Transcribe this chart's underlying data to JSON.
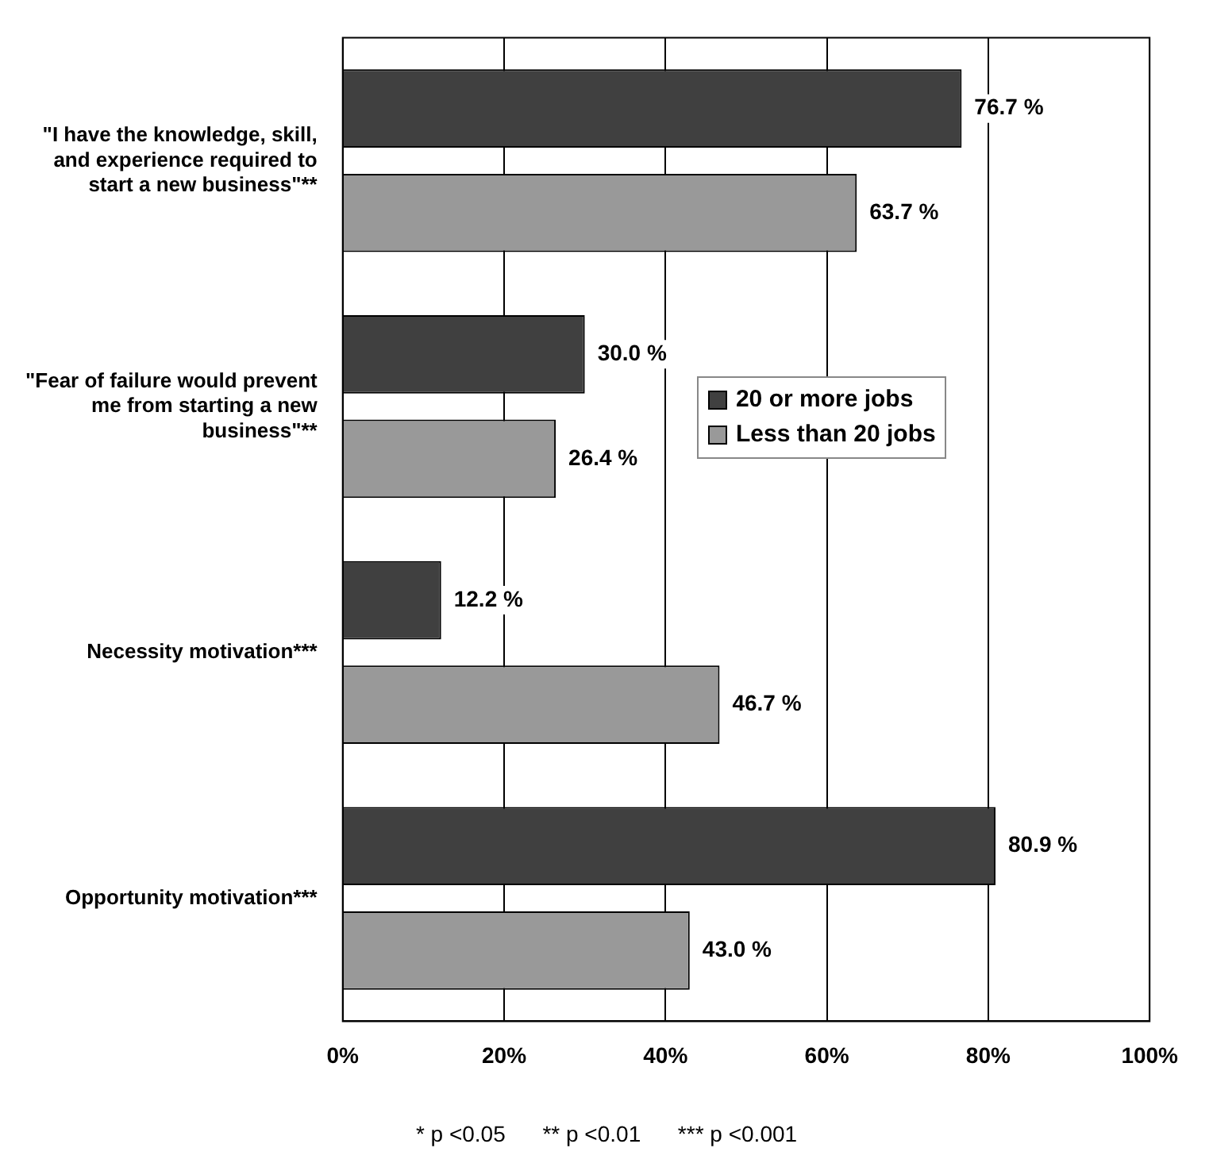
{
  "chart_data": {
    "type": "bar",
    "orientation": "horizontal",
    "categories": [
      "\"I have the knowledge, skill, and experience required to start a new business\"**",
      "\"Fear of failure would prevent me from starting a new business\"**",
      "Necessity motivation***",
      "Opportunity motivation***"
    ],
    "series": [
      {
        "name": "20 or more jobs",
        "color": "#404040",
        "values": [
          76.7,
          30.0,
          12.2,
          80.9
        ],
        "value_labels": [
          "76.7 %",
          "30.0 %",
          "12.2 %",
          "80.9 %"
        ]
      },
      {
        "name": "Less than 20 jobs",
        "color": "#999999",
        "values": [
          63.7,
          26.4,
          46.7,
          43.0
        ],
        "value_labels": [
          "63.7 %",
          "26.4 %",
          "46.7 %",
          "43.0 %"
        ]
      }
    ],
    "xlim": [
      0,
      100
    ],
    "xticks": [
      {
        "value": 0,
        "label": "0%"
      },
      {
        "value": 20,
        "label": "20%"
      },
      {
        "value": 40,
        "label": "40%"
      },
      {
        "value": 60,
        "label": "60%"
      },
      {
        "value": 80,
        "label": "80%"
      },
      {
        "value": 100,
        "label": "100%"
      }
    ],
    "grid": "x",
    "legend": "top right",
    "annotations": [
      "* p <0.05      ** p <0.01      *** p <0.001"
    ]
  }
}
